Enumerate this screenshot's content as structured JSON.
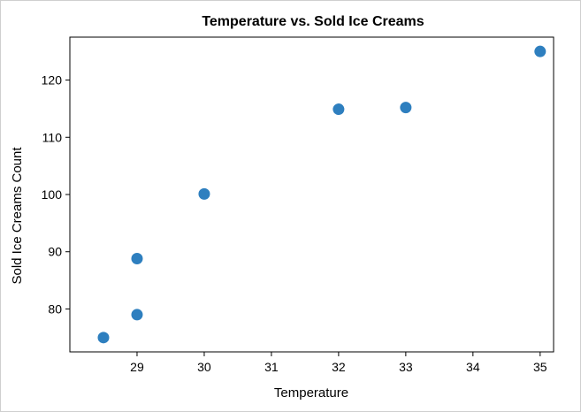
{
  "chart_data": {
    "type": "scatter",
    "title": "Temperature vs. Sold Ice Creams",
    "xlabel": "Temperature",
    "ylabel": "Sold Ice Creams Count",
    "x": [
      28.5,
      29,
      29,
      30,
      32,
      33,
      35
    ],
    "y": [
      75,
      79,
      88.8,
      100.1,
      114.9,
      115.2,
      125
    ],
    "xlim": [
      28.0,
      35.2
    ],
    "ylim": [
      72.5,
      127.5
    ],
    "xticks": [
      29,
      30,
      31,
      32,
      33,
      34,
      35
    ],
    "yticks": [
      80,
      90,
      100,
      110,
      120
    ],
    "marker_color": "#2e7fbf",
    "grid": false
  }
}
